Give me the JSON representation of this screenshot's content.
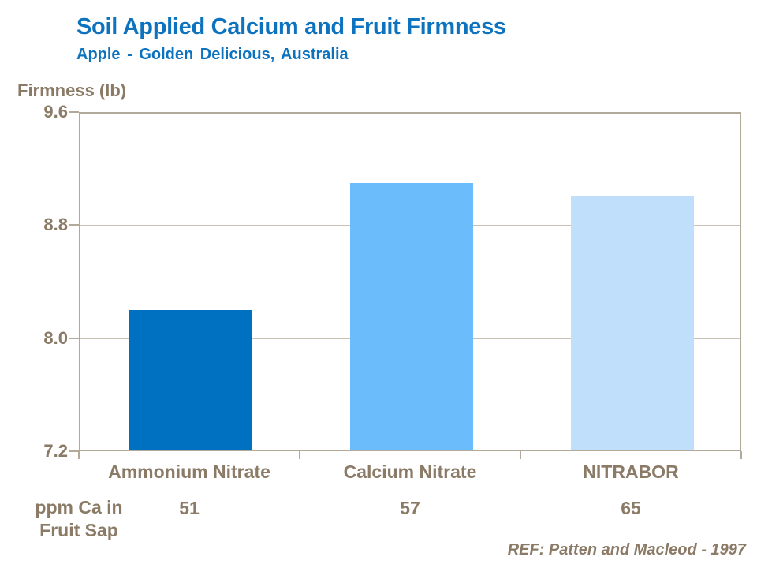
{
  "header": {
    "title": "Soil Applied Calcium and Fruit Firmness",
    "subtitle": "Apple - Golden Delicious, Australia"
  },
  "chart_data": {
    "type": "bar",
    "title": "Soil Applied Calcium and Fruit Firmness",
    "subtitle": "Apple - Golden Delicious, Australia",
    "ylabel": "Firmness (lb)",
    "xlabel": "",
    "ylim": [
      7.2,
      9.6
    ],
    "yticks": [
      9.6,
      8.8,
      8.0,
      7.2
    ],
    "grid_values": [
      8.8,
      8.0
    ],
    "grid": true,
    "legend_position": "none",
    "categories": [
      "Ammonium Nitrate",
      "Calcium Nitrate",
      "NITRABOR"
    ],
    "values": [
      8.2,
      9.1,
      9.0
    ],
    "bar_colors": [
      "#0070C0",
      "#6BBCFB",
      "#BFDFFB"
    ],
    "ppm_row": {
      "label_line1": "ppm Ca in",
      "label_line2": "Fruit Sap",
      "values": [
        "51",
        "57",
        "65"
      ]
    }
  },
  "footer": {
    "reference": "REF: Patten and Macleod - 1997"
  },
  "colors": {
    "title_blue": "#0D73BF",
    "text_brown": "#8A7A66",
    "axis": "#B3A99A",
    "gridline": "#C9C1B4",
    "background": "#FFFFFF"
  }
}
